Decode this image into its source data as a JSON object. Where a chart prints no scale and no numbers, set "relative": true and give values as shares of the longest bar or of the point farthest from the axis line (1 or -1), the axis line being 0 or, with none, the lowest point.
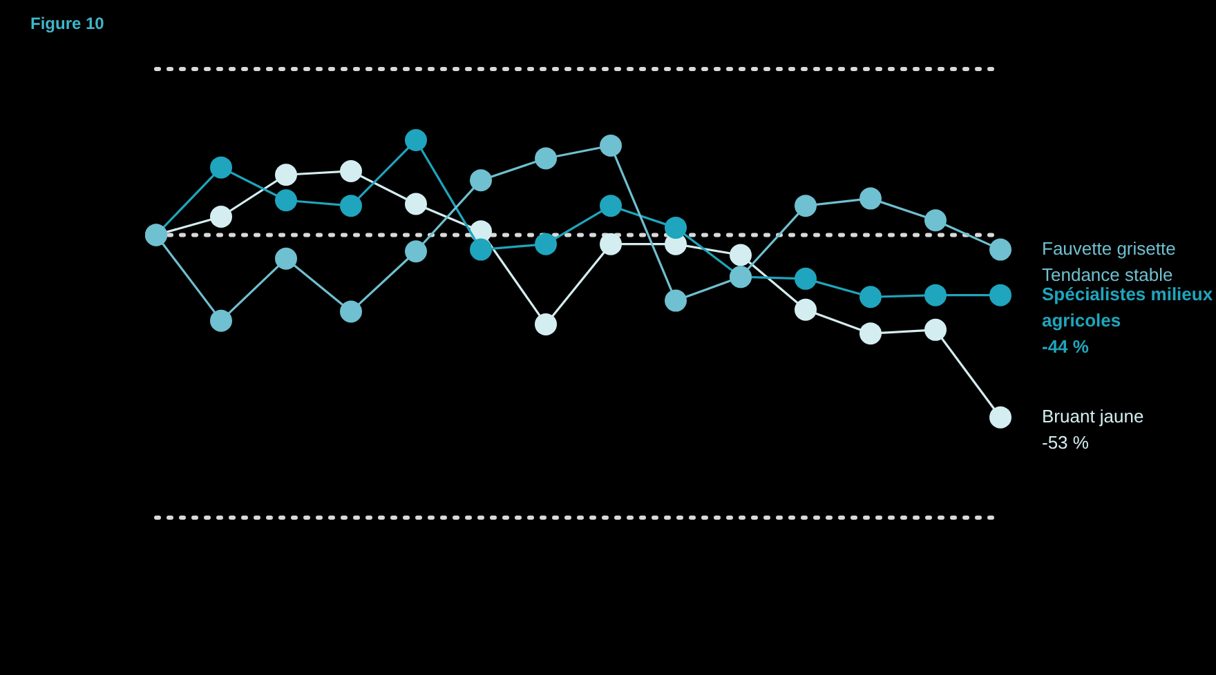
{
  "chart_data": {
    "type": "line",
    "title": "Figure 10",
    "relative": true,
    "legend": false,
    "marker": "circle",
    "line_style": "solid",
    "categories": [
      null,
      null,
      null,
      null,
      null,
      null,
      null,
      null,
      null,
      null,
      null,
      null,
      null,
      null
    ],
    "series": [
      {
        "name": "Fauvette grisette",
        "color": "#6fc0d0",
        "values": [
          0,
          -0.47,
          -0.13,
          -0.42,
          -0.09,
          0.3,
          0.42,
          0.49,
          -0.36,
          -0.23,
          0.16,
          0.2,
          0.08,
          -0.08
        ]
      },
      {
        "name": "Spécialistes milieux agricoles",
        "color": "#1fa5bd",
        "values": [
          0,
          0.37,
          0.19,
          0.16,
          0.52,
          -0.08,
          -0.05,
          0.16,
          0.04,
          -0.23,
          -0.24,
          -0.34,
          -0.33,
          -0.33
        ]
      },
      {
        "name": "Bruant jaune",
        "color": "#d4edf0",
        "values": [
          0,
          0.1,
          0.33,
          0.35,
          0.17,
          0.02,
          -0.49,
          -0.05,
          -0.05,
          -0.11,
          -0.41,
          -0.54,
          -0.52,
          -1
        ]
      }
    ],
    "ref_lines": [
      {
        "axis": "y",
        "value": 0.91,
        "color": "#d9d9d9",
        "line_style": "dotted"
      },
      {
        "axis": "y",
        "value": 0,
        "color": "#d9d9d9",
        "line_style": "dotted"
      },
      {
        "axis": "y",
        "value": -1.55,
        "color": "#d9d9d9",
        "line_style": "dotted"
      }
    ],
    "annotations": [
      "Tendance stable",
      "-44 %",
      "-53 %"
    ]
  }
}
